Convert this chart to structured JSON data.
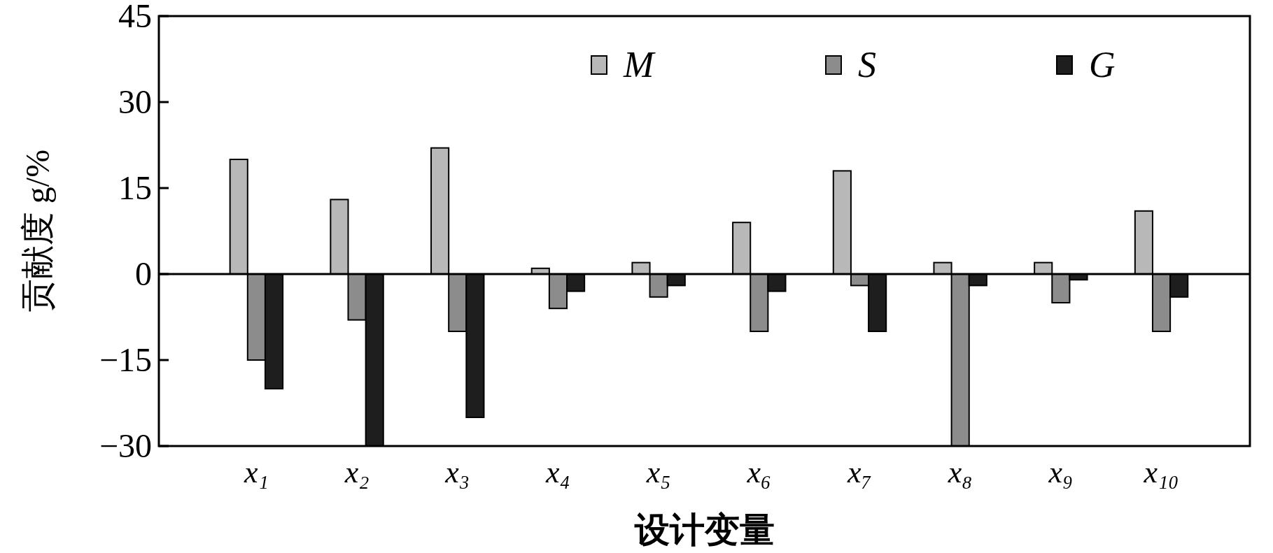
{
  "chart_data": {
    "type": "bar",
    "xlabel": "设计变量",
    "ylabel": "贡献度 g/%",
    "categories": [
      "x₁",
      "x₂",
      "x₃",
      "x₄",
      "x₅",
      "x₆",
      "x₇",
      "x₈",
      "x₉",
      "x₁₀"
    ],
    "series": [
      {
        "name": "M",
        "color": "#b8b8b8",
        "values": [
          20,
          13,
          22,
          1,
          2,
          9,
          18,
          2,
          2,
          11
        ]
      },
      {
        "name": "S",
        "color": "#8c8c8c",
        "values": [
          -15,
          -8,
          -10,
          -6,
          -4,
          -10,
          -2,
          -30,
          -5,
          -10
        ]
      },
      {
        "name": "G",
        "color": "#1e1e1e",
        "values": [
          -20,
          -30,
          -25,
          -3,
          -2,
          -3,
          -10,
          -2,
          -1,
          -4
        ]
      }
    ],
    "ylim": [
      -30,
      45
    ],
    "yticks": [
      -30,
      -15,
      0,
      15,
      30,
      45
    ],
    "ref_lines": [
      {
        "axis": "y",
        "value": 0
      }
    ],
    "grid": false,
    "legend": "top"
  }
}
